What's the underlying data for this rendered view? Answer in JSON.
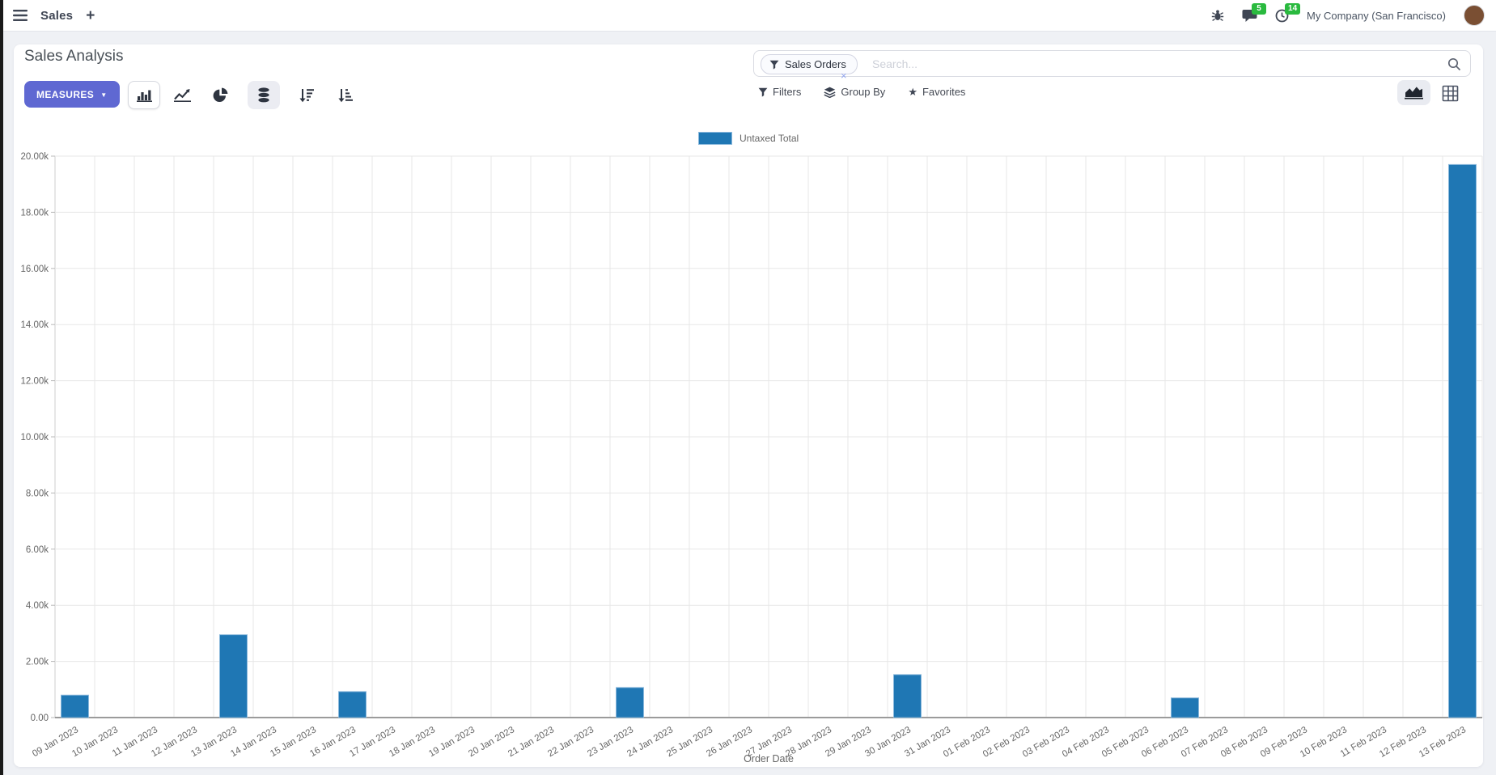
{
  "navbar": {
    "app_label": "Sales",
    "new_tab": "+",
    "messages_count": "5",
    "activities_count": "14",
    "company": "My Company (San Francisco)",
    "badge_color": "#2aba3f"
  },
  "control_panel": {
    "title": "Sales Analysis",
    "measures_label": "MEASURES",
    "measures_caret": "▼",
    "accent_color": "#5f68d2",
    "search": {
      "facet_label": "Sales Orders",
      "facet_close": "×",
      "placeholder": "Search..."
    },
    "filters_label": "Filters",
    "group_by_label": "Group By",
    "favorites_label": "Favorites",
    "favorites_star": "★"
  },
  "icons": {
    "toolbar": [
      "bar-chart-icon",
      "line-chart-icon",
      "pie-chart-icon",
      "stacked-icon",
      "sort-desc-icon",
      "sort-asc-icon"
    ],
    "view_switcher": [
      "graph-view-icon",
      "pivot-view-icon"
    ]
  },
  "chart_data": {
    "type": "bar",
    "title": "",
    "xlabel": "Order Date",
    "ylabel": "",
    "ylim": [
      0,
      20000
    ],
    "grid": true,
    "legend_position": "top",
    "legend": [
      "Untaxed Total"
    ],
    "y_tick_labels": [
      "0.00",
      "2.00k",
      "4.00k",
      "6.00k",
      "8.00k",
      "10.00k",
      "12.00k",
      "14.00k",
      "16.00k",
      "18.00k",
      "20.00k"
    ],
    "categories": [
      "09 Jan 2023",
      "10 Jan 2023",
      "11 Jan 2023",
      "12 Jan 2023",
      "13 Jan 2023",
      "14 Jan 2023",
      "15 Jan 2023",
      "16 Jan 2023",
      "17 Jan 2023",
      "18 Jan 2023",
      "19 Jan 2023",
      "20 Jan 2023",
      "21 Jan 2023",
      "22 Jan 2023",
      "23 Jan 2023",
      "24 Jan 2023",
      "25 Jan 2023",
      "26 Jan 2023",
      "27 Jan 2023",
      "28 Jan 2023",
      "29 Jan 2023",
      "30 Jan 2023",
      "31 Jan 2023",
      "01 Feb 2023",
      "02 Feb 2023",
      "03 Feb 2023",
      "04 Feb 2023",
      "05 Feb 2023",
      "06 Feb 2023",
      "07 Feb 2023",
      "08 Feb 2023",
      "09 Feb 2023",
      "10 Feb 2023",
      "11 Feb 2023",
      "12 Feb 2023",
      "13 Feb 2023"
    ],
    "series": [
      {
        "name": "Untaxed Total",
        "color": "#1f77b4",
        "border_color": "#8ab8dc",
        "values": [
          800,
          0,
          0,
          0,
          2950,
          0,
          0,
          925,
          0,
          0,
          0,
          0,
          0,
          0,
          1070,
          0,
          0,
          0,
          0,
          0,
          0,
          1530,
          0,
          0,
          0,
          0,
          0,
          0,
          700,
          0,
          0,
          0,
          0,
          0,
          0,
          19700
        ]
      }
    ]
  }
}
